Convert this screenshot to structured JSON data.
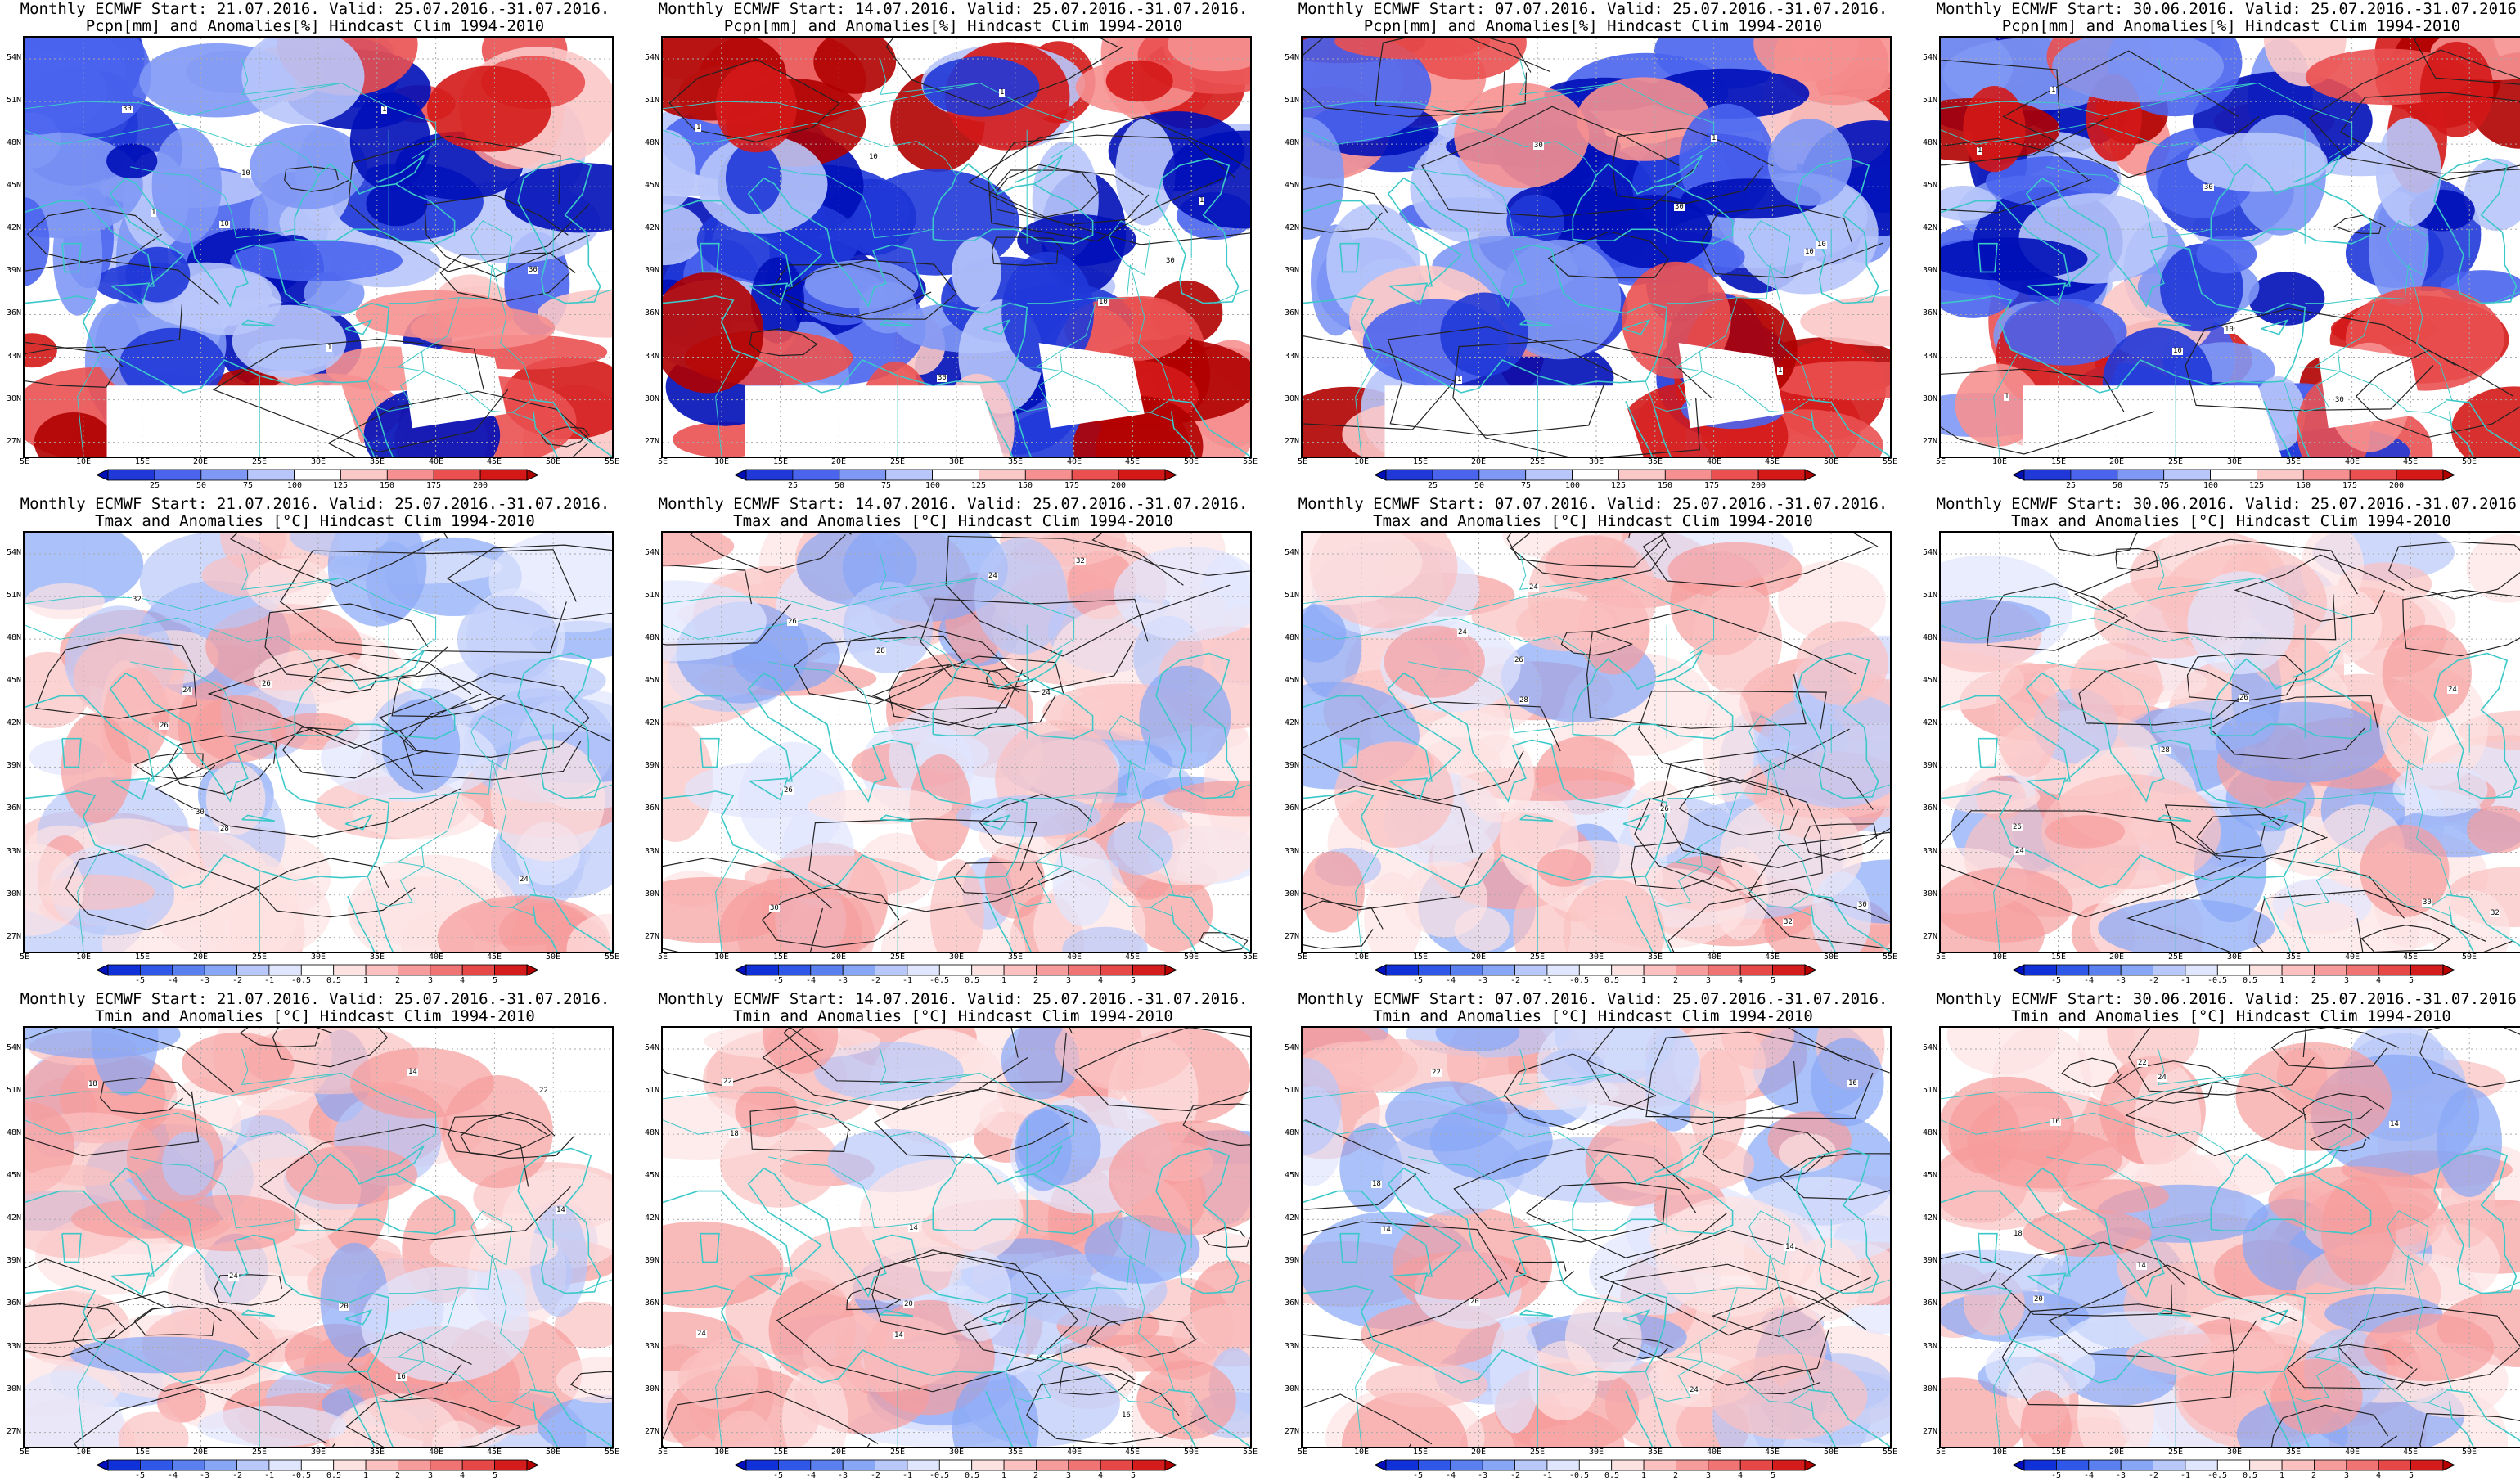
{
  "figure": {
    "common": {
      "model": "Monthly ECMWF",
      "valid": "Valid: 25.07.2016.-31.07.2016.",
      "clim": "Hindcast Clim 1994-2010"
    },
    "start_dates": [
      "21.07.2016.",
      "14.07.2016.",
      "07.07.2016.",
      "30.06.2016."
    ],
    "rows": [
      {
        "variable": "pcpn",
        "heading": "Pcpn[mm] and Anomalies[%] Hindcast Clim 1994-2010",
        "colorbar_labels": [
          "25",
          "50",
          "75",
          "100",
          "125",
          "150",
          "175",
          "200"
        ],
        "colorbar_colors": [
          "#0010b8",
          "#2038d8",
          "#4a64ee",
          "#7f98f5",
          "#b8c6fb",
          "#ffffff",
          "#fbc8c8",
          "#f69090",
          "#ea5050",
          "#d41818",
          "#b00000"
        ],
        "contour_labels": [
          "1",
          "10",
          "30"
        ]
      },
      {
        "variable": "tmax",
        "heading": "Tmax and Anomalies [°C] Hindcast Clim 1994-2010",
        "colorbar_labels": [
          "-5",
          "-4",
          "-3",
          "-2",
          "-1",
          "-0.5",
          "0.5",
          "1",
          "2",
          "3",
          "4",
          "5"
        ],
        "colorbar_colors": [
          "#0010c0",
          "#1030d8",
          "#3058e8",
          "#5a80f0",
          "#88a6f6",
          "#b8c8fa",
          "#e0e6fd",
          "#ffffff",
          "#fde2e2",
          "#fbc0c0",
          "#f69c9c",
          "#f07474",
          "#e64848",
          "#d41c1c",
          "#b80000"
        ],
        "contour_labels": [
          "24",
          "26",
          "28",
          "30",
          "32"
        ]
      },
      {
        "variable": "tmin",
        "heading": "Tmin and Anomalies [°C] Hindcast Clim 1994-2010",
        "colorbar_labels": [
          "-5",
          "-4",
          "-3",
          "-2",
          "-1",
          "-0.5",
          "0.5",
          "1",
          "2",
          "3",
          "4",
          "5"
        ],
        "colorbar_colors": [
          "#0010c0",
          "#1030d8",
          "#3058e8",
          "#5a80f0",
          "#88a6f6",
          "#b8c8fa",
          "#e0e6fd",
          "#ffffff",
          "#fde2e2",
          "#fbc0c0",
          "#f69c9c",
          "#f07474",
          "#e64848",
          "#d41c1c",
          "#b80000"
        ],
        "contour_labels": [
          "14",
          "16",
          "18",
          "20",
          "22",
          "24"
        ]
      }
    ],
    "lat_labels": [
      "54N",
      "51N",
      "48N",
      "45N",
      "42N",
      "39N",
      "36N",
      "33N",
      "30N",
      "27N"
    ],
    "lon_labels": [
      "5E",
      "10E",
      "15E",
      "20E",
      "25E",
      "30E",
      "35E",
      "40E",
      "45E",
      "50E",
      "55E"
    ]
  }
}
